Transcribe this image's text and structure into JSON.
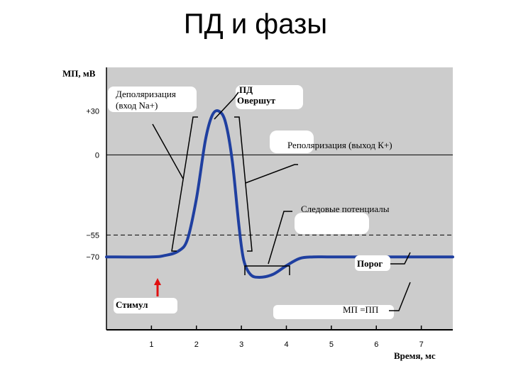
{
  "slide": {
    "title": "ПД и фазы"
  },
  "colors": {
    "plot_background": "#cccccc",
    "trace": "#1f3fa0",
    "stimulus_arrow": "#e01010",
    "label_patch": "#ffffff"
  },
  "chart_data": {
    "type": "line",
    "title": "ПД и фазы",
    "ylabel": "МП, мВ",
    "xlabel": "Время, мс",
    "xlim": [
      0,
      7.7
    ],
    "ylim": [
      -120,
      60
    ],
    "x_ticks": [
      1,
      2,
      3,
      4,
      5,
      6,
      7
    ],
    "y_ticks": [
      {
        "value": 30,
        "label": "+30"
      },
      {
        "value": 0,
        "label": "0"
      },
      {
        "value": -55,
        "label": "−55"
      },
      {
        "value": -70,
        "label": "−70"
      }
    ],
    "reference_lines": [
      {
        "value": 0,
        "style": "solid"
      },
      {
        "value": -55,
        "style": "dashed"
      }
    ],
    "grid": false,
    "legend": "none",
    "series": [
      {
        "x": [
          0,
          1.0,
          1.3,
          1.6,
          1.8,
          2.0,
          2.2,
          2.35,
          2.5,
          2.65,
          2.8,
          2.95,
          3.05,
          3.2,
          3.4,
          3.7,
          4.0,
          4.3,
          4.6,
          5.0,
          6.0,
          7.7
        ],
        "y": [
          -70,
          -70,
          -69,
          -66,
          -58,
          -30,
          10,
          27,
          30,
          22,
          -5,
          -50,
          -72,
          -82,
          -84,
          -82,
          -76,
          -71,
          -70,
          -70,
          -70,
          -70
        ]
      }
    ],
    "annotations": {
      "depolarization": {
        "line1": "Деполяризация",
        "line2": "(вход Na+)"
      },
      "ap": {
        "line1": "ПД",
        "line2": "Овершут"
      },
      "repolarization": "Реполяризация (выход К+)",
      "trace_potentials": "Следовые потенциалы",
      "threshold": "Порог",
      "stimulus": "Стимул",
      "resting": "МП =ПП"
    }
  }
}
